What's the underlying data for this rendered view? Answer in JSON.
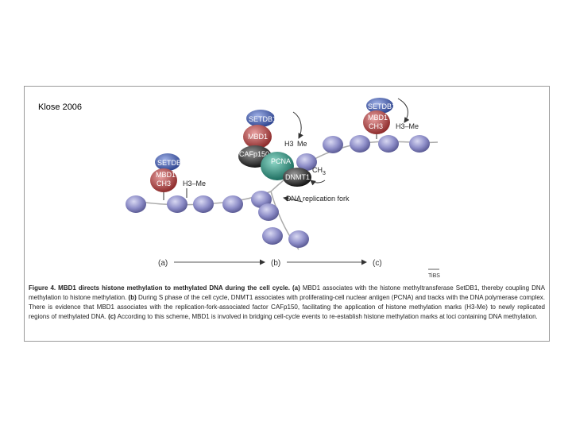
{
  "slide": {
    "tag": "Klose 2006"
  },
  "diagram": {
    "labels": {
      "setdb1": "SETDB1",
      "mbd1": "MBD1",
      "ch3": "CH3",
      "h3me": "H3–Me",
      "h3": "H3",
      "me": "Me",
      "caf": "CAFp150",
      "pcna": "PCNA",
      "dnmt1": "DNMT1",
      "ch3_sub": "CH",
      "ch3_subscript": "3",
      "fork": "DNA replication fork",
      "stage_a": "(a)",
      "stage_b": "(b)",
      "stage_c": "(c)",
      "journal": "TiBS"
    },
    "colors": {
      "nucleosome": "#8e8ec8",
      "setdb1": "#3f5aa8",
      "mbd1": "#b84a4a",
      "caf": "#333333",
      "pcna": "#2e8f7f",
      "dnmt1": "#2b2b2b"
    }
  },
  "caption": {
    "title": "Figure 4. MBD1 directs histone methylation to methylated DNA during the cell cycle.",
    "a_tag": "(a)",
    "a_text": " MBD1 associates with the histone methyltransferase SetDB1, thereby coupling DNA methylation to histone methylation.",
    "b_tag": "(b)",
    "b_text": " During S phase of the cell cycle, DNMT1 associates with proliferating-cell nuclear antigen (PCNA) and tracks with the DNA polymerase complex. There is evidence that MBD1 associates with the replication-fork-associated factor CAFp150, facilitating the application of histone methylation marks (H3-Me) to newly replicated regions of methylated DNA.",
    "c_tag": "(c)",
    "c_text": " According to this scheme, MBD1 is involved in bridging cell-cycle events to re-establish histone methylation marks at loci containing DNA methylation."
  }
}
